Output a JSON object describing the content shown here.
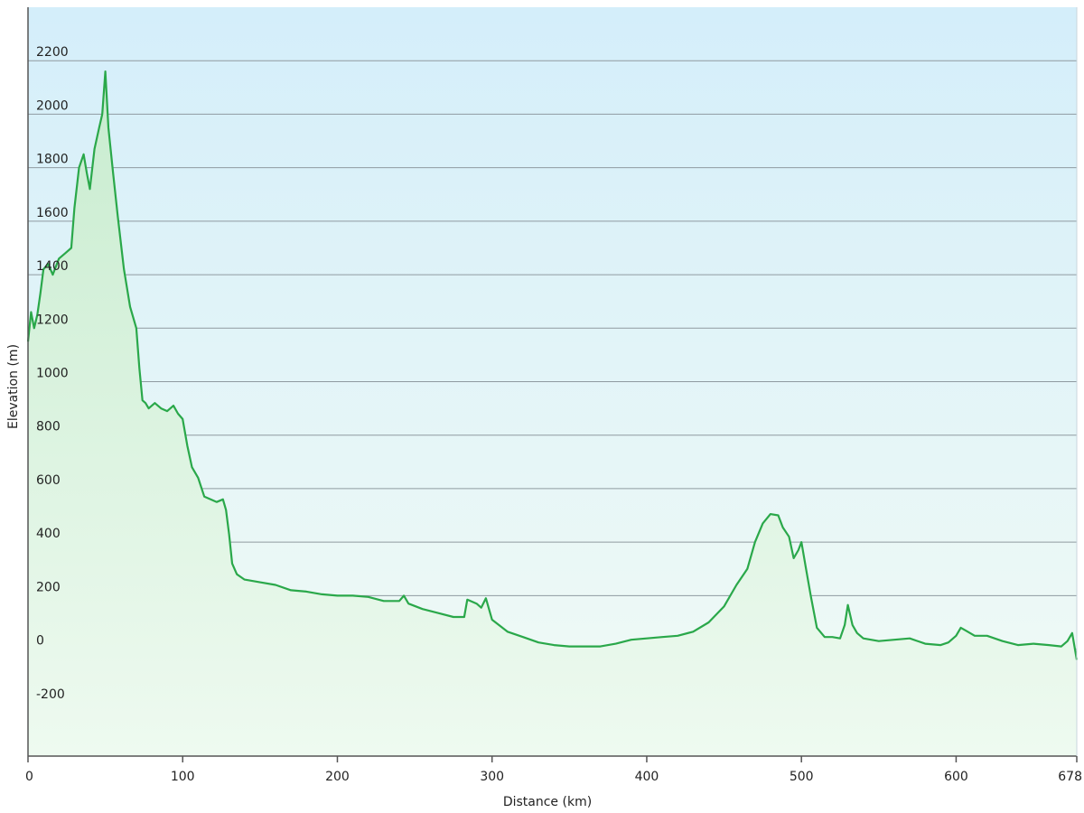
{
  "chart_data": {
    "type": "area",
    "title": "",
    "xlabel": "Distance  (km)",
    "ylabel": "Elevation (m)",
    "xlim": [
      0,
      678
    ],
    "ylim": [
      -400,
      2400
    ],
    "x_ticks": [
      0,
      100,
      200,
      300,
      400,
      500,
      600,
      678
    ],
    "x_tick_labels": [
      "0",
      "100",
      "200",
      "300",
      "400",
      "500",
      "600",
      "678"
    ],
    "y_ticks": [
      -200,
      0,
      200,
      400,
      600,
      800,
      1000,
      1200,
      1400,
      1600,
      1800,
      2000,
      2200
    ],
    "y_tick_labels": [
      "-200",
      "0",
      "200",
      "400",
      "600",
      "800",
      "1000",
      "1200",
      "1400",
      "1600",
      "1800",
      "2000",
      "2200"
    ],
    "grid": true,
    "colors": {
      "line": "#2aa84a",
      "fill_top": "#c8eccf",
      "fill_bottom": "#eefaf0",
      "bg_top": "#d4eefa",
      "bg_bottom": "#f2fbf5",
      "grid": "#8f9aa0",
      "axis": "#555555"
    },
    "series": [
      {
        "name": "",
        "x": [
          0,
          2,
          4,
          6,
          8,
          10,
          13,
          16,
          20,
          24,
          28,
          30,
          33,
          36,
          38,
          40,
          43,
          46,
          48,
          50,
          52,
          55,
          58,
          62,
          66,
          70,
          72,
          74,
          76,
          78,
          82,
          86,
          90,
          94,
          97,
          100,
          103,
          106,
          110,
          114,
          118,
          122,
          126,
          128,
          130,
          132,
          135,
          140,
          150,
          160,
          170,
          180,
          190,
          200,
          210,
          220,
          230,
          240,
          243,
          246,
          255,
          265,
          275,
          282,
          284,
          290,
          293,
          296,
          300,
          310,
          320,
          330,
          340,
          350,
          360,
          370,
          380,
          390,
          400,
          410,
          420,
          430,
          440,
          450,
          458,
          465,
          470,
          475,
          480,
          485,
          488,
          492,
          495,
          498,
          500,
          503,
          506,
          510,
          515,
          520,
          525,
          528,
          530,
          533,
          536,
          540,
          550,
          560,
          570,
          580,
          590,
          595,
          600,
          603,
          606,
          612,
          620,
          630,
          640,
          650,
          660,
          668,
          672,
          675,
          678
        ],
        "values": [
          1150,
          1260,
          1200,
          1250,
          1330,
          1420,
          1440,
          1400,
          1460,
          1480,
          1500,
          1650,
          1800,
          1850,
          1780,
          1720,
          1870,
          1950,
          2000,
          2160,
          1950,
          1780,
          1620,
          1420,
          1280,
          1200,
          1050,
          930,
          920,
          900,
          920,
          900,
          890,
          910,
          880,
          860,
          760,
          680,
          640,
          570,
          560,
          550,
          560,
          520,
          430,
          320,
          280,
          260,
          250,
          240,
          220,
          215,
          205,
          200,
          200,
          195,
          180,
          180,
          200,
          170,
          150,
          135,
          120,
          120,
          185,
          170,
          155,
          190,
          110,
          65,
          45,
          25,
          15,
          10,
          10,
          10,
          20,
          35,
          40,
          45,
          50,
          65,
          100,
          160,
          240,
          300,
          400,
          470,
          505,
          500,
          455,
          420,
          340,
          370,
          400,
          300,
          200,
          80,
          45,
          45,
          40,
          90,
          165,
          90,
          60,
          40,
          30,
          35,
          40,
          20,
          15,
          25,
          50,
          80,
          70,
          50,
          50,
          30,
          15,
          20,
          15,
          10,
          30,
          60,
          -40
        ]
      }
    ]
  }
}
